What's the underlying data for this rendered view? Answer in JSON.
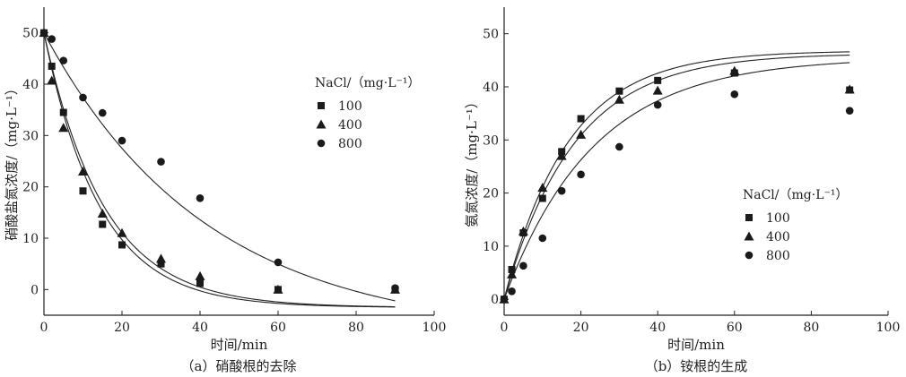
{
  "chart_data": [
    {
      "type": "scatter",
      "panel_caption": "（a）硝酸根的去除",
      "xlabel": "时间/min",
      "ylabel": "硝酸盐氮浓度/（mg·L⁻¹）",
      "xlim": [
        0,
        100
      ],
      "ylim": [
        -5,
        55
      ],
      "xticks": [
        0,
        20,
        40,
        60,
        80,
        100
      ],
      "yticks": [
        0,
        10,
        20,
        30,
        40,
        50
      ],
      "legend_title": "NaCl/（mg·L⁻¹）",
      "legend_position": "upper-right",
      "grid": false,
      "series": [
        {
          "name": "100",
          "marker": "square",
          "x": [
            0,
            2,
            5,
            10,
            15,
            20,
            30,
            40,
            60,
            90
          ],
          "y": [
            50,
            43.5,
            34.5,
            19.2,
            12.7,
            8.7,
            5.0,
            1.2,
            0,
            0
          ],
          "fit": {
            "model": "exp",
            "A": 53.5,
            "k": 0.07,
            "C": -3.5
          }
        },
        {
          "name": "400",
          "marker": "triangle",
          "x": [
            0,
            2,
            5,
            10,
            15,
            20,
            30,
            40,
            60,
            90
          ],
          "y": [
            50,
            40.7,
            31.5,
            23.0,
            14.8,
            11.0,
            6.0,
            2.6,
            0,
            0
          ],
          "fit": {
            "model": "exp",
            "A": 53.5,
            "k": 0.065,
            "C": -3.5
          }
        },
        {
          "name": "800",
          "marker": "circle",
          "x": [
            0,
            2,
            5,
            10,
            15,
            20,
            30,
            40,
            60,
            90
          ],
          "y": [
            50,
            48.8,
            44.6,
            37.4,
            34.4,
            29.0,
            24.9,
            17.8,
            5.3,
            0.3
          ],
          "fit": {
            "model": "exp",
            "A": 59,
            "k": 0.024,
            "C": -9
          }
        }
      ]
    },
    {
      "type": "scatter",
      "panel_caption": "（b）铵根的生成",
      "xlabel": "时间/min",
      "ylabel": "氨氮浓度/（mg·L⁻¹）",
      "xlim": [
        0,
        100
      ],
      "ylim": [
        -3,
        55
      ],
      "xticks": [
        0,
        20,
        40,
        60,
        80,
        100
      ],
      "yticks": [
        0,
        10,
        20,
        30,
        40,
        50
      ],
      "legend_title": "NaCl/（mg·L⁻¹）",
      "legend_position": "lower-right",
      "grid": false,
      "series": [
        {
          "name": "100",
          "marker": "square",
          "x": [
            0,
            2,
            5,
            10,
            15,
            20,
            30,
            40,
            60,
            90
          ],
          "y": [
            0,
            5.6,
            12.5,
            19.0,
            27.8,
            34.0,
            39.2,
            41.2,
            42.6,
            39.4
          ],
          "fit": {
            "model": "rise",
            "A": 46.8,
            "k": 0.06
          }
        },
        {
          "name": "400",
          "marker": "triangle",
          "x": [
            0,
            2,
            5,
            10,
            15,
            20,
            30,
            40,
            60,
            90
          ],
          "y": [
            0,
            4.7,
            12.8,
            21.0,
            27.0,
            31.0,
            37.6,
            39.3,
            43.0,
            39.5
          ],
          "fit": {
            "model": "rise",
            "A": 46.3,
            "k": 0.055
          }
        },
        {
          "name": "800",
          "marker": "circle",
          "x": [
            0,
            2,
            5,
            10,
            15,
            20,
            30,
            40,
            60,
            90
          ],
          "y": [
            0,
            1.5,
            6.3,
            11.5,
            20.4,
            23.5,
            28.7,
            36.6,
            38.6,
            35.5
          ],
          "fit": {
            "model": "rise",
            "A": 45.5,
            "k": 0.043
          }
        }
      ]
    }
  ]
}
